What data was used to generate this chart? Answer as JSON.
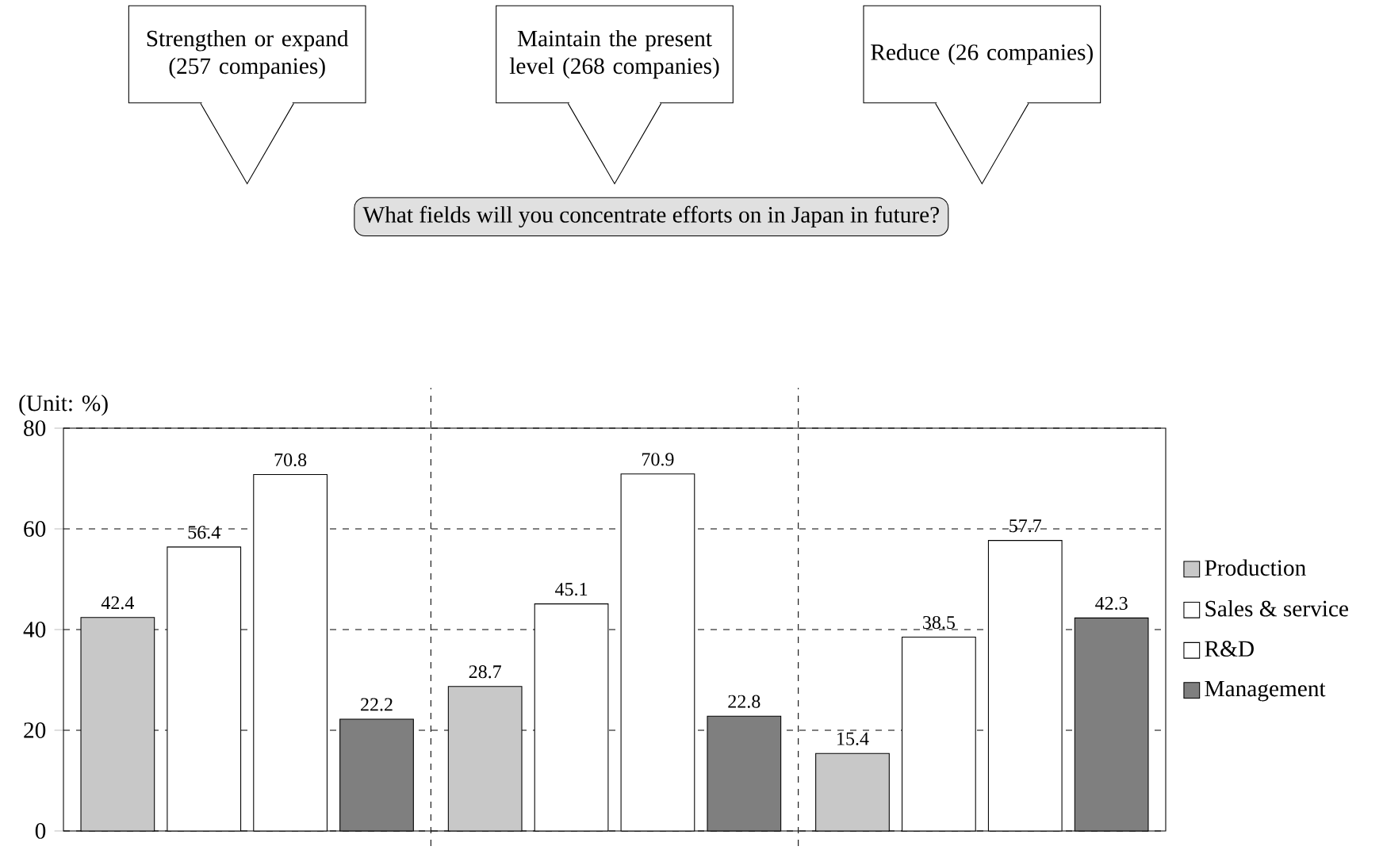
{
  "chart_data": {
    "type": "bar",
    "subtitle": "What fields will you concentrate efforts on in Japan in future?",
    "ylabel": "(Unit: %)",
    "categories": [
      null,
      null,
      null
    ],
    "annotations": [
      "Strengthen or expand (257 companies)",
      "Maintain the present level (268 companies)",
      "Reduce (26 companies)"
    ],
    "series": [
      {
        "name": "Production",
        "color": "#c8c8c8",
        "values": [
          42.4,
          28.7,
          15.4
        ]
      },
      {
        "name": "Sales & service",
        "color": "#ffffff",
        "values": [
          56.4,
          45.1,
          38.5
        ]
      },
      {
        "name": "R&D",
        "color": "#ffffff",
        "values": [
          70.8,
          70.9,
          57.7
        ]
      },
      {
        "name": "Management",
        "color": "#7f7f7f",
        "values": [
          22.2,
          22.8,
          42.3
        ]
      }
    ],
    "ylim": [
      0,
      80
    ],
    "yticks": [
      0,
      20,
      40,
      60,
      80
    ],
    "grid": "y",
    "legend": "right",
    "data_labels": true
  }
}
